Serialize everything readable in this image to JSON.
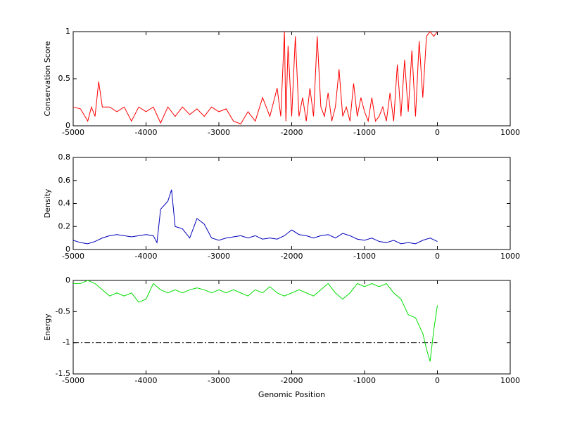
{
  "chart_data": [
    {
      "type": "line",
      "ylabel": "Conservation Score",
      "xlim": [
        -5000,
        1000
      ],
      "xticks": [
        -5000,
        -4000,
        -3000,
        -2000,
        -1000,
        0,
        1000
      ],
      "ylim": [
        0,
        1
      ],
      "yticks": [
        0,
        0.5,
        1
      ],
      "series": [
        {
          "color": "#ff0000",
          "x": [
            -5000,
            -4900,
            -4800,
            -4750,
            -4700,
            -4650,
            -4600,
            -4500,
            -4400,
            -4300,
            -4200,
            -4100,
            -4000,
            -3900,
            -3800,
            -3700,
            -3600,
            -3500,
            -3400,
            -3300,
            -3200,
            -3100,
            -3000,
            -2900,
            -2800,
            -2700,
            -2600,
            -2500,
            -2400,
            -2300,
            -2200,
            -2150,
            -2100,
            -2080,
            -2050,
            -2000,
            -1950,
            -1900,
            -1850,
            -1800,
            -1750,
            -1700,
            -1650,
            -1600,
            -1550,
            -1500,
            -1450,
            -1400,
            -1350,
            -1300,
            -1250,
            -1200,
            -1150,
            -1100,
            -1050,
            -1000,
            -950,
            -900,
            -850,
            -800,
            -750,
            -700,
            -650,
            -600,
            -550,
            -500,
            -450,
            -400,
            -350,
            -300,
            -250,
            -200,
            -150,
            -100,
            -50,
            0
          ],
          "values": [
            0.2,
            0.18,
            0.05,
            0.2,
            0.1,
            0.47,
            0.2,
            0.2,
            0.15,
            0.2,
            0.05,
            0.2,
            0.15,
            0.2,
            0.03,
            0.2,
            0.1,
            0.2,
            0.12,
            0.18,
            0.1,
            0.2,
            0.15,
            0.18,
            0.05,
            0.02,
            0.15,
            0.05,
            0.3,
            0.1,
            0.4,
            0.1,
            1.0,
            0.05,
            0.85,
            0.1,
            0.95,
            0.1,
            0.3,
            0.05,
            0.4,
            0.1,
            0.95,
            0.2,
            0.1,
            0.35,
            0.05,
            0.2,
            0.6,
            0.1,
            0.2,
            0.05,
            0.45,
            0.1,
            0.3,
            0.15,
            0.05,
            0.3,
            0.05,
            0.1,
            0.2,
            0.05,
            0.35,
            0.05,
            0.65,
            0.1,
            0.7,
            0.15,
            0.8,
            0.1,
            0.9,
            0.3,
            0.95,
            1.0,
            0.95,
            1.0
          ]
        }
      ]
    },
    {
      "type": "line",
      "ylabel": "Density",
      "xlim": [
        -5000,
        1000
      ],
      "xticks": [
        -5000,
        -4000,
        -3000,
        -2000,
        -1000,
        0,
        1000
      ],
      "ylim": [
        0,
        0.8
      ],
      "yticks": [
        0,
        0.2,
        0.4,
        0.6,
        0.8
      ],
      "series": [
        {
          "color": "#0000bb",
          "x": [
            -5000,
            -4900,
            -4800,
            -4700,
            -4600,
            -4500,
            -4400,
            -4300,
            -4200,
            -4100,
            -4000,
            -3900,
            -3850,
            -3800,
            -3700,
            -3650,
            -3600,
            -3500,
            -3400,
            -3300,
            -3200,
            -3100,
            -3000,
            -2900,
            -2800,
            -2700,
            -2600,
            -2500,
            -2400,
            -2300,
            -2200,
            -2100,
            -2000,
            -1900,
            -1800,
            -1700,
            -1600,
            -1500,
            -1400,
            -1300,
            -1200,
            -1100,
            -1000,
            -900,
            -800,
            -700,
            -600,
            -500,
            -400,
            -300,
            -200,
            -100,
            0
          ],
          "values": [
            0.08,
            0.06,
            0.05,
            0.07,
            0.1,
            0.12,
            0.13,
            0.12,
            0.11,
            0.12,
            0.13,
            0.12,
            0.06,
            0.35,
            0.42,
            0.52,
            0.2,
            0.18,
            0.1,
            0.27,
            0.22,
            0.1,
            0.08,
            0.1,
            0.11,
            0.12,
            0.1,
            0.12,
            0.09,
            0.1,
            0.09,
            0.12,
            0.17,
            0.13,
            0.12,
            0.1,
            0.12,
            0.13,
            0.1,
            0.14,
            0.12,
            0.09,
            0.08,
            0.1,
            0.07,
            0.06,
            0.08,
            0.05,
            0.06,
            0.05,
            0.08,
            0.1,
            0.07
          ]
        }
      ]
    },
    {
      "type": "line",
      "ylabel": "Energy",
      "xlabel": "Genomic Position",
      "xlim": [
        -5000,
        1000
      ],
      "xticks": [
        -5000,
        -4000,
        -3000,
        -2000,
        -1000,
        0,
        1000
      ],
      "ylim": [
        -1.5,
        0
      ],
      "yticks": [
        -1.5,
        -1,
        -0.5,
        0
      ],
      "reference_line": {
        "y": -1,
        "x": [
          -5000,
          0
        ],
        "color": "#000000"
      },
      "series": [
        {
          "color": "#00dd00",
          "x": [
            -5000,
            -4900,
            -4800,
            -4700,
            -4600,
            -4500,
            -4400,
            -4300,
            -4200,
            -4100,
            -4000,
            -3900,
            -3800,
            -3700,
            -3600,
            -3500,
            -3400,
            -3300,
            -3200,
            -3100,
            -3000,
            -2900,
            -2800,
            -2700,
            -2600,
            -2500,
            -2400,
            -2300,
            -2200,
            -2100,
            -2000,
            -1900,
            -1800,
            -1700,
            -1600,
            -1500,
            -1400,
            -1300,
            -1200,
            -1100,
            -1000,
            -900,
            -800,
            -700,
            -600,
            -500,
            -400,
            -300,
            -200,
            -150,
            -100,
            -50,
            0
          ],
          "values": [
            -0.05,
            -0.05,
            0,
            -0.05,
            -0.15,
            -0.25,
            -0.2,
            -0.25,
            -0.2,
            -0.35,
            -0.3,
            -0.05,
            -0.15,
            -0.2,
            -0.15,
            -0.2,
            -0.15,
            -0.12,
            -0.15,
            -0.2,
            -0.15,
            -0.2,
            -0.15,
            -0.2,
            -0.25,
            -0.15,
            -0.2,
            -0.1,
            -0.2,
            -0.25,
            -0.2,
            -0.15,
            -0.2,
            -0.25,
            -0.15,
            -0.05,
            -0.2,
            -0.3,
            -0.2,
            -0.05,
            -0.1,
            -0.05,
            -0.1,
            -0.05,
            -0.2,
            -0.3,
            -0.55,
            -0.6,
            -0.85,
            -1.1,
            -1.3,
            -0.8,
            -0.4
          ]
        }
      ]
    }
  ]
}
